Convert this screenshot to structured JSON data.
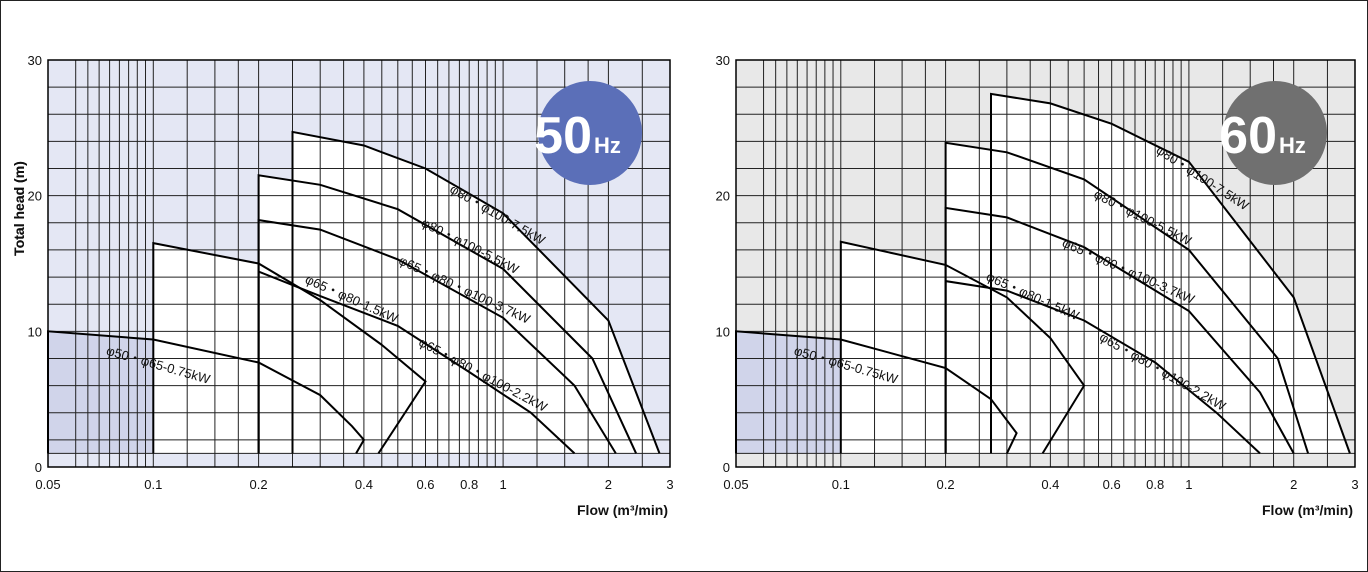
{
  "chart_data": [
    {
      "type": "line",
      "panel": "left",
      "badge": {
        "number": "50",
        "unit": "Hz",
        "color": "#5b6fb8"
      },
      "background_color": "#e4e7f4",
      "ylabel": "Total head (m)",
      "xlabel": "Flow (m³/min)",
      "x_scale": "log",
      "xlim": [
        0.05,
        3
      ],
      "ylim": [
        0,
        30
      ],
      "x_ticks": [
        "0.05",
        "0.1",
        "0.2",
        "0.4",
        "0.6",
        "0.8",
        "1",
        "2",
        "3"
      ],
      "y_ticks": [
        "0",
        "10",
        "20",
        "30"
      ],
      "grid": true,
      "series": [
        {
          "name": "φ50・φ65-0.75kW",
          "fill": "#d0d4ea",
          "points": [
            [
              0.05,
              1
            ],
            [
              0.05,
              10
            ],
            [
              0.1,
              9.4
            ],
            [
              0.2,
              7.7
            ],
            [
              0.3,
              5.3
            ],
            [
              0.37,
              3
            ],
            [
              0.4,
              2
            ],
            [
              0.38,
              1
            ]
          ]
        },
        {
          "name": "φ65・φ80-1.5kW",
          "fill": "#ffffff",
          "points": [
            [
              0.1,
              1
            ],
            [
              0.1,
              16.5
            ],
            [
              0.2,
              15
            ],
            [
              0.3,
              12.3
            ],
            [
              0.45,
              9
            ],
            [
              0.6,
              6.3
            ],
            [
              0.44,
              1
            ]
          ]
        },
        {
          "name": "φ65・φ80・φ100-2.2kW",
          "fill": "#d0d4ea",
          "points": [
            [
              0.2,
              1
            ],
            [
              0.2,
              14.4
            ],
            [
              0.3,
              12.6
            ],
            [
              0.5,
              10.4
            ],
            [
              0.8,
              7
            ],
            [
              1.2,
              4
            ],
            [
              1.6,
              1
            ]
          ]
        },
        {
          "name": "φ65・φ80・φ100-3.7kW",
          "fill": "#d0d4ea",
          "points": [
            [
              0.2,
              1
            ],
            [
              0.2,
              18.2
            ],
            [
              0.3,
              17.5
            ],
            [
              0.5,
              15.3
            ],
            [
              1,
              11
            ],
            [
              1.6,
              6
            ],
            [
              2.1,
              1
            ]
          ]
        },
        {
          "name": "φ80・φ100-5.5kW",
          "fill": "#ffffff",
          "points": [
            [
              0.2,
              1
            ],
            [
              0.2,
              21.5
            ],
            [
              0.3,
              20.8
            ],
            [
              0.5,
              19
            ],
            [
              1,
              14.6
            ],
            [
              1.8,
              8
            ],
            [
              2.4,
              1
            ]
          ]
        },
        {
          "name": "φ80・φ100-7.5kW",
          "fill": "#ffffff",
          "points": [
            [
              0.25,
              1
            ],
            [
              0.25,
              24.7
            ],
            [
              0.4,
              23.7
            ],
            [
              0.6,
              22
            ],
            [
              1,
              18.7
            ],
            [
              2,
              10.8
            ],
            [
              2.8,
              1
            ]
          ]
        }
      ]
    },
    {
      "type": "line",
      "panel": "right",
      "badge": {
        "number": "60",
        "unit": "Hz",
        "color": "#707070"
      },
      "background_color": "#e8e8e8",
      "ylabel": "Total head (m)",
      "xlabel": "Flow (m³/min)",
      "x_scale": "log",
      "xlim": [
        0.05,
        3
      ],
      "ylim": [
        0,
        30
      ],
      "x_ticks": [
        "0.05",
        "0.1",
        "0.2",
        "0.4",
        "0.6",
        "0.8",
        "1",
        "2",
        "3"
      ],
      "y_ticks": [
        "0",
        "10",
        "20",
        "30"
      ],
      "grid": true,
      "series": [
        {
          "name": "φ50・φ65-0.75kW",
          "fill": "#d0d4ea",
          "points": [
            [
              0.05,
              1
            ],
            [
              0.05,
              10
            ],
            [
              0.1,
              9.4
            ],
            [
              0.2,
              7.3
            ],
            [
              0.27,
              5
            ],
            [
              0.32,
              2.5
            ],
            [
              0.3,
              1
            ]
          ]
        },
        {
          "name": "φ65・φ80-1.5kW",
          "fill": "#ffffff",
          "points": [
            [
              0.1,
              1
            ],
            [
              0.1,
              16.6
            ],
            [
              0.2,
              14.9
            ],
            [
              0.3,
              12.5
            ],
            [
              0.4,
              9.5
            ],
            [
              0.5,
              6
            ],
            [
              0.38,
              1
            ]
          ]
        },
        {
          "name": "φ65・φ80・φ100-2.2kW",
          "fill": "#d0d4ea",
          "points": [
            [
              0.2,
              1
            ],
            [
              0.2,
              13.7
            ],
            [
              0.3,
              13
            ],
            [
              0.5,
              10.8
            ],
            [
              0.8,
              7.7
            ],
            [
              1.2,
              4
            ],
            [
              1.6,
              1
            ]
          ]
        },
        {
          "name": "φ65・φ80・φ100-3.7kW",
          "fill": "#d0d4ea",
          "points": [
            [
              0.2,
              1
            ],
            [
              0.2,
              19.1
            ],
            [
              0.3,
              18.4
            ],
            [
              0.5,
              16.2
            ],
            [
              1,
              11.5
            ],
            [
              1.6,
              5.5
            ],
            [
              2,
              1
            ]
          ]
        },
        {
          "name": "φ80・φ100-5.5kW",
          "fill": "#ffffff",
          "points": [
            [
              0.2,
              1
            ],
            [
              0.2,
              23.9
            ],
            [
              0.3,
              23.2
            ],
            [
              0.5,
              21.2
            ],
            [
              1,
              16
            ],
            [
              1.8,
              8
            ],
            [
              2.2,
              1
            ]
          ]
        },
        {
          "name": "φ80・φ100-7.5kW",
          "fill": "#ffffff",
          "points": [
            [
              0.27,
              1
            ],
            [
              0.27,
              27.5
            ],
            [
              0.4,
              26.8
            ],
            [
              0.6,
              25.3
            ],
            [
              1,
              22.5
            ],
            [
              2,
              12.5
            ],
            [
              2.9,
              1
            ]
          ]
        }
      ]
    }
  ]
}
